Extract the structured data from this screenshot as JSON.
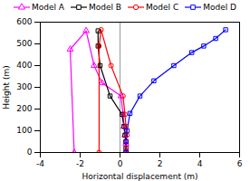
{
  "chart_data": {
    "type": "line",
    "xlabel": "Horizontal displacement (m)",
    "ylabel": "Height (m)",
    "xlim": [
      -4,
      6
    ],
    "ylim": [
      0,
      600
    ],
    "xticks": [
      -4,
      -2,
      0,
      2,
      4,
      6
    ],
    "yticks": [
      0,
      100,
      200,
      300,
      400,
      500,
      600
    ],
    "vline_x": 0,
    "grid": false,
    "legend": "top",
    "series": [
      {
        "name": "Model A",
        "color": "#ff00ff",
        "marker": "triangle",
        "x": [
          0.35,
          0.3,
          0.25,
          0.2,
          0.15,
          0.05,
          -0.9,
          -1.3,
          -1.7,
          -2.5,
          -2.3
        ],
        "values": [
          0,
          40,
          80,
          120,
          175,
          260,
          320,
          400,
          560,
          475,
          0
        ]
      },
      {
        "name": "Model B",
        "color": "#000000",
        "marker": "square",
        "x": [
          0.3,
          0.3,
          0.3,
          0.25,
          0.2,
          0.1,
          -0.5,
          -1.0,
          -1.1,
          -1.1
        ],
        "values": [
          0,
          20,
          50,
          80,
          120,
          175,
          260,
          400,
          490,
          560
        ]
      },
      {
        "name": "Model C",
        "color": "#ff0000",
        "marker": "circle",
        "x": [
          0.3,
          0.3,
          0.3,
          0.35,
          0.3,
          0.25,
          0.15,
          -0.45,
          -0.95,
          -1.05,
          -1.05
        ],
        "values": [
          0,
          20,
          50,
          80,
          120,
          175,
          260,
          400,
          565,
          490,
          0
        ]
      },
      {
        "name": "Model D",
        "color": "#0000ff",
        "marker": "square",
        "x": [
          0.3,
          0.3,
          0.35,
          0.5,
          1.0,
          1.7,
          2.7,
          3.6,
          4.2,
          4.8,
          5.3
        ],
        "values": [
          0,
          50,
          100,
          180,
          260,
          330,
          400,
          460,
          490,
          525,
          565
        ]
      }
    ]
  }
}
